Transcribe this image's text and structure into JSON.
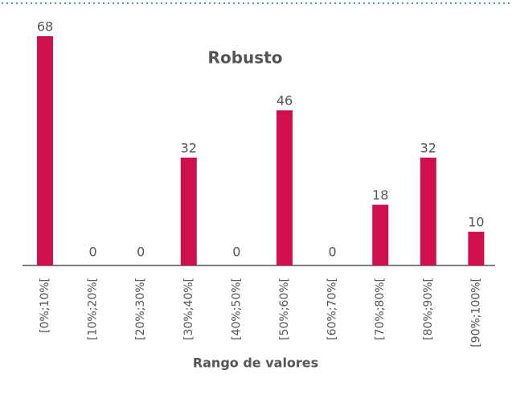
{
  "chart_data": {
    "type": "bar",
    "title": "Robusto",
    "x_label": "Rango de valores",
    "categories": [
      "[0%;10%[",
      "[10%;20%[",
      "[20%;30%[",
      "[30%;40%[",
      "[40%;50%[",
      "[50%;60%[",
      "[60%;70%[",
      "[70%;80%[",
      "[80%;90%[",
      "[90%;100%["
    ],
    "values": [
      68,
      0,
      0,
      32,
      0,
      46,
      0,
      18,
      32,
      10
    ],
    "color": "#d0104c"
  }
}
